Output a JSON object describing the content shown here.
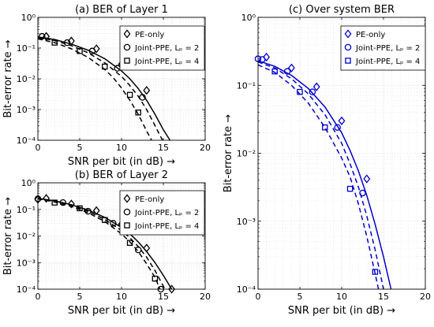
{
  "chart_data": [
    {
      "id": "a",
      "type": "line",
      "title": "(a) BER of Layer 1",
      "xlabel": "SNR per bit (in dB) →",
      "ylabel": "Bit-error rate →",
      "xlim": [
        0,
        20
      ],
      "ylim": [
        0.0001,
        1
      ],
      "yscale": "log",
      "xticks": [
        0,
        5,
        10,
        15,
        20
      ],
      "yticks": [
        {
          "value": 1,
          "label": "10⁰"
        },
        {
          "value": 0.1,
          "label": "10⁻¹"
        },
        {
          "value": 0.01,
          "label": "10⁻²"
        },
        {
          "value": 0.001,
          "label": "10⁻³"
        },
        {
          "value": 0.0001,
          "label": "10⁻⁴"
        }
      ],
      "grid": true,
      "legend": "top-right",
      "color": "#000000",
      "series": [
        {
          "name": "PE-only",
          "dash": "solid",
          "marker": "diamond",
          "curve": [
            [
              0,
              0.23
            ],
            [
              2,
              0.19
            ],
            [
              4,
              0.135
            ],
            [
              6,
              0.085
            ],
            [
              8,
              0.045
            ],
            [
              10,
              0.018
            ],
            [
              11,
              0.01
            ],
            [
              12,
              0.0048
            ],
            [
              13,
              0.002
            ],
            [
              14,
              0.0007
            ],
            [
              15,
              0.00022
            ],
            [
              15.8,
              0.0001
            ]
          ],
          "points": [
            [
              1,
              0.24
            ],
            [
              4,
              0.17
            ],
            [
              7,
              0.095
            ],
            [
              10,
              0.03
            ],
            [
              13,
              0.0042
            ]
          ]
        },
        {
          "name": "Joint-PPE, Lₚ = 2",
          "dash": "dash",
          "marker": "circle",
          "curve": [
            [
              0,
              0.22
            ],
            [
              2,
              0.175
            ],
            [
              4,
              0.12
            ],
            [
              6,
              0.07
            ],
            [
              8,
              0.033
            ],
            [
              10,
              0.012
            ],
            [
              11,
              0.006
            ],
            [
              12,
              0.0027
            ],
            [
              13,
              0.001
            ],
            [
              14,
              0.0003
            ],
            [
              14.9,
              0.0001
            ]
          ],
          "points": [
            [
              0.5,
              0.24
            ],
            [
              3.5,
              0.15
            ],
            [
              6.5,
              0.08
            ],
            [
              9.5,
              0.022
            ],
            [
              12.5,
              0.0025
            ]
          ]
        },
        {
          "name": "Joint-PPE, Lₚ = 4",
          "dash": "dash",
          "marker": "square",
          "curve": [
            [
              0,
              0.2
            ],
            [
              2,
              0.15
            ],
            [
              4,
              0.095
            ],
            [
              6,
              0.05
            ],
            [
              8,
              0.02
            ],
            [
              9,
              0.011
            ],
            [
              10,
              0.005
            ],
            [
              11,
              0.002
            ],
            [
              12,
              0.0007
            ],
            [
              13,
              0.0002
            ],
            [
              13.6,
              0.0001
            ]
          ],
          "points": [
            [
              2,
              0.15
            ],
            [
              5,
              0.08
            ],
            [
              8,
              0.025
            ],
            [
              11,
              0.003
            ],
            [
              12,
              0.0008
            ]
          ]
        }
      ]
    },
    {
      "id": "b",
      "type": "line",
      "title": "(b) BER of Layer 2",
      "xlabel": "SNR per bit (in dB) →",
      "ylabel": "Bit-error rate →",
      "xlim": [
        0,
        20
      ],
      "ylim": [
        0.0001,
        1
      ],
      "yscale": "log",
      "xticks": [
        0,
        5,
        10,
        15,
        20
      ],
      "yticks": [
        {
          "value": 1,
          "label": "10⁰"
        },
        {
          "value": 0.1,
          "label": "10⁻¹"
        },
        {
          "value": 0.01,
          "label": "10⁻²"
        },
        {
          "value": 0.001,
          "label": "10⁻³"
        },
        {
          "value": 0.0001,
          "label": "10⁻⁴"
        }
      ],
      "grid": true,
      "legend": "top-right",
      "color": "#000000",
      "series": [
        {
          "name": "PE-only",
          "dash": "solid",
          "marker": "diamond",
          "curve": [
            [
              0,
              0.26
            ],
            [
              2,
              0.21
            ],
            [
              4,
              0.15
            ],
            [
              6,
              0.095
            ],
            [
              8,
              0.05
            ],
            [
              10,
              0.021
            ],
            [
              11,
              0.012
            ],
            [
              12,
              0.006
            ],
            [
              13,
              0.0026
            ],
            [
              14,
              0.001
            ],
            [
              15,
              0.00033
            ],
            [
              16,
              0.0001
            ]
          ],
          "points": [
            [
              0,
              0.24
            ],
            [
              1,
              0.26
            ],
            [
              4,
              0.16
            ],
            [
              7,
              0.09
            ],
            [
              10,
              0.028
            ],
            [
              13,
              0.0035
            ],
            [
              16,
              0.0001
            ]
          ]
        },
        {
          "name": "Joint-PPE, Lₚ = 2",
          "dash": "dash",
          "marker": "circle",
          "curve": [
            [
              0,
              0.25
            ],
            [
              2,
              0.2
            ],
            [
              4,
              0.14
            ],
            [
              6,
              0.085
            ],
            [
              8,
              0.042
            ],
            [
              10,
              0.016
            ],
            [
              11,
              0.0085
            ],
            [
              12,
              0.004
            ],
            [
              13,
              0.0016
            ],
            [
              14,
              0.0005
            ],
            [
              15.2,
              0.0001
            ]
          ],
          "points": [
            [
              0,
              0.25
            ],
            [
              3,
              0.18
            ],
            [
              6,
              0.085
            ],
            [
              9,
              0.03
            ],
            [
              12,
              0.003
            ],
            [
              14.7,
              0.0001
            ]
          ]
        },
        {
          "name": "Joint-PPE, Lₚ = 4",
          "dash": "dash",
          "marker": "square",
          "curve": [
            [
              0,
              0.25
            ],
            [
              2,
              0.19
            ],
            [
              4,
              0.13
            ],
            [
              6,
              0.075
            ],
            [
              8,
              0.035
            ],
            [
              10,
              0.012
            ],
            [
              11,
              0.006
            ],
            [
              12,
              0.0026
            ],
            [
              13,
              0.0009
            ],
            [
              14,
              0.00028
            ],
            [
              14.6,
              0.0001
            ]
          ],
          "points": [
            [
              2,
              0.18
            ],
            [
              5,
              0.11
            ],
            [
              8,
              0.04
            ],
            [
              11,
              0.0055
            ],
            [
              14,
              0.00025
            ]
          ]
        }
      ]
    },
    {
      "id": "c",
      "type": "line",
      "title": "(c) Over system BER",
      "xlabel": "SNR per bit (in dB) →",
      "ylabel": "Bit-error rate →",
      "xlim": [
        0,
        20
      ],
      "ylim": [
        0.0001,
        1
      ],
      "yscale": "log",
      "xticks": [
        0,
        5,
        10,
        15,
        20
      ],
      "yticks": [
        {
          "value": 1,
          "label": "10⁰"
        },
        {
          "value": 0.1,
          "label": "10⁻¹"
        },
        {
          "value": 0.01,
          "label": "10⁻²"
        },
        {
          "value": 0.001,
          "label": "10⁻³"
        },
        {
          "value": 0.0001,
          "label": "10⁻⁴"
        }
      ],
      "grid": true,
      "legend": "top-right",
      "color": "#0000cc",
      "series": [
        {
          "name": "PE-only",
          "dash": "solid",
          "marker": "diamond",
          "curve": [
            [
              0,
              0.23
            ],
            [
              2,
              0.19
            ],
            [
              4,
              0.14
            ],
            [
              6,
              0.09
            ],
            [
              8,
              0.048
            ],
            [
              10,
              0.02
            ],
            [
              11,
              0.011
            ],
            [
              12,
              0.0055
            ],
            [
              13,
              0.0024
            ],
            [
              14,
              0.0009
            ],
            [
              15,
              0.0003
            ],
            [
              15.9,
              0.0001
            ]
          ],
          "points": [
            [
              1,
              0.26
            ],
            [
              4,
              0.18
            ],
            [
              7,
              0.095
            ],
            [
              10,
              0.03
            ],
            [
              13,
              0.0042
            ]
          ]
        },
        {
          "name": "Joint-PPE, Lₚ = 2",
          "dash": "dash",
          "marker": "circle",
          "curve": [
            [
              0,
              0.22
            ],
            [
              2,
              0.18
            ],
            [
              4,
              0.125
            ],
            [
              6,
              0.075
            ],
            [
              8,
              0.037
            ],
            [
              10,
              0.014
            ],
            [
              11,
              0.007
            ],
            [
              12,
              0.0032
            ],
            [
              13,
              0.0012
            ],
            [
              14,
              0.00038
            ],
            [
              15,
              0.0001
            ]
          ],
          "points": [
            [
              0,
              0.245
            ],
            [
              0.5,
              0.24
            ],
            [
              3.5,
              0.16
            ],
            [
              6.5,
              0.08
            ],
            [
              9.5,
              0.024
            ],
            [
              12.5,
              0.0026
            ]
          ]
        },
        {
          "name": "Joint-PPE, Lₚ = 4",
          "dash": "dash",
          "marker": "square",
          "curve": [
            [
              0,
              0.2
            ],
            [
              2,
              0.155
            ],
            [
              4,
              0.1
            ],
            [
              6,
              0.055
            ],
            [
              8,
              0.024
            ],
            [
              10,
              0.0085
            ],
            [
              11,
              0.0045
            ],
            [
              12,
              0.0018
            ],
            [
              13,
              0.0006
            ],
            [
              14,
              0.00017
            ],
            [
              14.4,
              0.0001
            ]
          ],
          "points": [
            [
              2,
              0.16
            ],
            [
              5,
              0.08
            ],
            [
              8,
              0.024
            ],
            [
              11,
              0.003
            ],
            [
              14,
              0.00018
            ]
          ]
        }
      ]
    }
  ]
}
